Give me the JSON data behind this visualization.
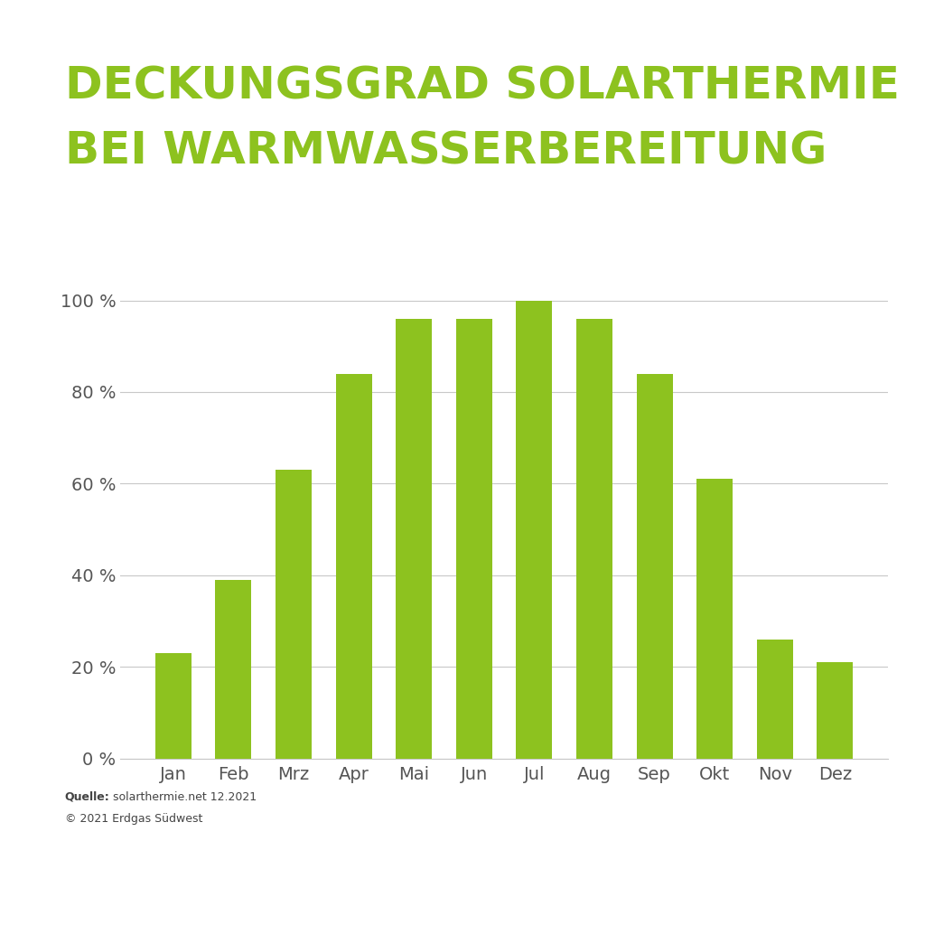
{
  "title_line1": "DECKUNGSGRAD SOLARTHERMIE",
  "title_line2": "BEI WARMWASSERBEREITUNG",
  "title_color": "#8dc21f",
  "bar_color": "#8dc21f",
  "background_color": "#ffffff",
  "categories": [
    "Jan",
    "Feb",
    "Mrz",
    "Apr",
    "Mai",
    "Jun",
    "Jul",
    "Aug",
    "Sep",
    "Okt",
    "Nov",
    "Dez"
  ],
  "values": [
    23,
    39,
    63,
    84,
    96,
    96,
    100,
    96,
    84,
    61,
    26,
    21
  ],
  "ylim": [
    0,
    105
  ],
  "yticks": [
    0,
    20,
    40,
    60,
    80,
    100
  ],
  "ytick_labels": [
    "0 %",
    "20 %",
    "40 %",
    "60 %",
    "80 %",
    "100 %"
  ],
  "grid_color": "#c8c8c8",
  "tick_color": "#555555",
  "source_bold": "Quelle:",
  "source_text": " solarthermie.net 12.2021",
  "copyright_text": "© 2021 Erdgas Südwest",
  "source_fontsize": 9,
  "title_fontsize": 36,
  "tick_label_fontsize": 14,
  "bar_width": 0.6
}
